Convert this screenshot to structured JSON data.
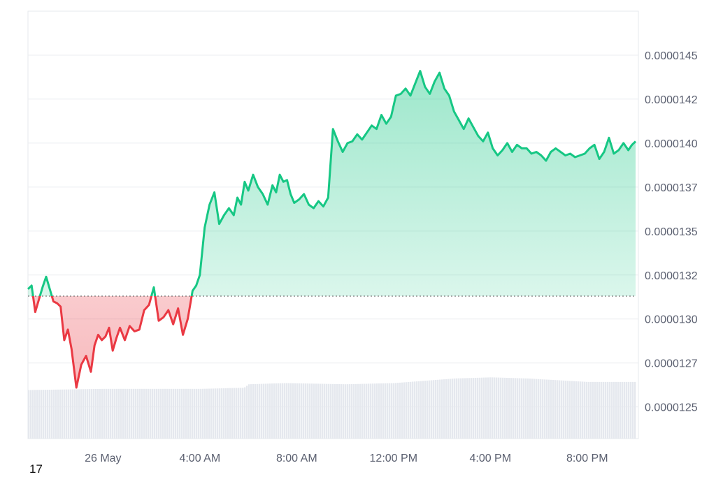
{
  "corner_label": "17",
  "chart_data": {
    "type": "area",
    "title": "",
    "xlabel": "",
    "ylabel": "",
    "x_tick_labels": [
      "26 May",
      "4:00 AM",
      "8:00 AM",
      "12:00 PM",
      "4:00 PM",
      "8:00 PM"
    ],
    "x_tick_hours": [
      0,
      4,
      8,
      12,
      16,
      20
    ],
    "y_tick_labels": [
      "0.0000145",
      "0.0000142",
      "0.0000140",
      "0.0000137",
      "0.0000135",
      "0.0000132",
      "0.0000130",
      "0.0000127",
      "0.0000125"
    ],
    "y_tick_values": [
      1.453e-05,
      1.428e-05,
      1.403e-05,
      1.378e-05,
      1.353e-05,
      1.328e-05,
      1.303e-05,
      1.278e-05,
      1.253e-05
    ],
    "ylim": [
      1.235e-05,
      1.478e-05
    ],
    "xlim_hours": [
      -3.1,
      22.0
    ],
    "baseline": 1.316e-05,
    "grid": true,
    "colors": {
      "up": "#16c784",
      "down": "#ea3943",
      "grid": "#ebedf0",
      "volume": "#e5e8ee"
    },
    "series": [
      {
        "x_hours": [
          -3.1,
          -2.95,
          -2.8,
          -2.65,
          -2.5,
          -2.35,
          -2.2,
          -2.05,
          -1.9,
          -1.75,
          -1.6,
          -1.45,
          -1.3,
          -1.1,
          -0.9,
          -0.7,
          -0.5,
          -0.35,
          -0.2,
          -0.05,
          0.1,
          0.25,
          0.4,
          0.55,
          0.7,
          0.9,
          1.1,
          1.3,
          1.5,
          1.7,
          1.9,
          2.1,
          2.3,
          2.5,
          2.7,
          2.9,
          3.1,
          3.3,
          3.5,
          3.7,
          3.85,
          4.0,
          4.2,
          4.4,
          4.6,
          4.8,
          5.0,
          5.2,
          5.4,
          5.55,
          5.7,
          5.85,
          6.0,
          6.2,
          6.4,
          6.6,
          6.8,
          7.0,
          7.15,
          7.3,
          7.45,
          7.6,
          7.75,
          7.9,
          8.1,
          8.3,
          8.5,
          8.7,
          8.9,
          9.1,
          9.3,
          9.5,
          9.7,
          9.9,
          10.1,
          10.3,
          10.5,
          10.7,
          10.9,
          11.1,
          11.3,
          11.5,
          11.7,
          11.9,
          12.1,
          12.3,
          12.5,
          12.7,
          12.9,
          13.1,
          13.3,
          13.5,
          13.7,
          13.9,
          14.1,
          14.3,
          14.5,
          14.7,
          14.9,
          15.1,
          15.3,
          15.5,
          15.7,
          15.9,
          16.1,
          16.3,
          16.5,
          16.7,
          16.9,
          17.1,
          17.3,
          17.5,
          17.7,
          17.9,
          18.1,
          18.3,
          18.5,
          18.7,
          18.9,
          19.1,
          19.3,
          19.5,
          19.7,
          19.9,
          20.1,
          20.3,
          20.5,
          20.7,
          20.9,
          21.1,
          21.3,
          21.5,
          21.7,
          21.85,
          22.0
        ],
        "values": [
          1.32e-05,
          1.322e-05,
          1.307e-05,
          1.314e-05,
          1.321e-05,
          1.327e-05,
          1.32e-05,
          1.313e-05,
          1.312e-05,
          1.31e-05,
          1.291e-05,
          1.297e-05,
          1.286e-05,
          1.264e-05,
          1.277e-05,
          1.282e-05,
          1.273e-05,
          1.288e-05,
          1.294e-05,
          1.291e-05,
          1.293e-05,
          1.298e-05,
          1.285e-05,
          1.292e-05,
          1.298e-05,
          1.291e-05,
          1.299e-05,
          1.296e-05,
          1.297e-05,
          1.308e-05,
          1.311e-05,
          1.321e-05,
          1.302e-05,
          1.304e-05,
          1.308e-05,
          1.3e-05,
          1.309e-05,
          1.294e-05,
          1.303e-05,
          1.319e-05,
          1.322e-05,
          1.328e-05,
          1.355e-05,
          1.368e-05,
          1.375e-05,
          1.357e-05,
          1.362e-05,
          1.366e-05,
          1.362e-05,
          1.372e-05,
          1.368e-05,
          1.381e-05,
          1.376e-05,
          1.385e-05,
          1.378e-05,
          1.374e-05,
          1.368e-05,
          1.379e-05,
          1.375e-05,
          1.385e-05,
          1.381e-05,
          1.382e-05,
          1.374e-05,
          1.369e-05,
          1.371e-05,
          1.374e-05,
          1.368e-05,
          1.366e-05,
          1.37e-05,
          1.367e-05,
          1.372e-05,
          1.411e-05,
          1.404e-05,
          1.398e-05,
          1.403e-05,
          1.404e-05,
          1.408e-05,
          1.405e-05,
          1.409e-05,
          1.413e-05,
          1.411e-05,
          1.419e-05,
          1.414e-05,
          1.418e-05,
          1.43e-05,
          1.431e-05,
          1.434e-05,
          1.43e-05,
          1.437e-05,
          1.444e-05,
          1.435e-05,
          1.431e-05,
          1.438e-05,
          1.443e-05,
          1.434e-05,
          1.43e-05,
          1.421e-05,
          1.416e-05,
          1.411e-05,
          1.417e-05,
          1.412e-05,
          1.407e-05,
          1.404e-05,
          1.409e-05,
          1.4e-05,
          1.396e-05,
          1.399e-05,
          1.403e-05,
          1.398e-05,
          1.402e-05,
          1.4e-05,
          1.4e-05,
          1.397e-05,
          1.398e-05,
          1.396e-05,
          1.393e-05,
          1.398e-05,
          1.4e-05,
          1.398e-05,
          1.396e-05,
          1.397e-05,
          1.395e-05,
          1.396e-05,
          1.397e-05,
          1.4e-05,
          1.402e-05,
          1.394e-05,
          1.398e-05,
          1.406e-05,
          1.397e-05,
          1.399e-05,
          1.403e-05,
          1.399e-05,
          1.402e-05,
          1.404e-05
        ]
      }
    ],
    "volume": {
      "x_hours": [
        -3.1,
        0.0,
        4.0,
        5.8,
        6.0,
        7.5,
        10.0,
        12.0,
        14.5,
        16.0,
        17.5,
        20.0,
        22.0
      ],
      "values": [
        0.42,
        0.43,
        0.43,
        0.44,
        0.47,
        0.48,
        0.47,
        0.48,
        0.52,
        0.53,
        0.52,
        0.49,
        0.49
      ]
    }
  }
}
